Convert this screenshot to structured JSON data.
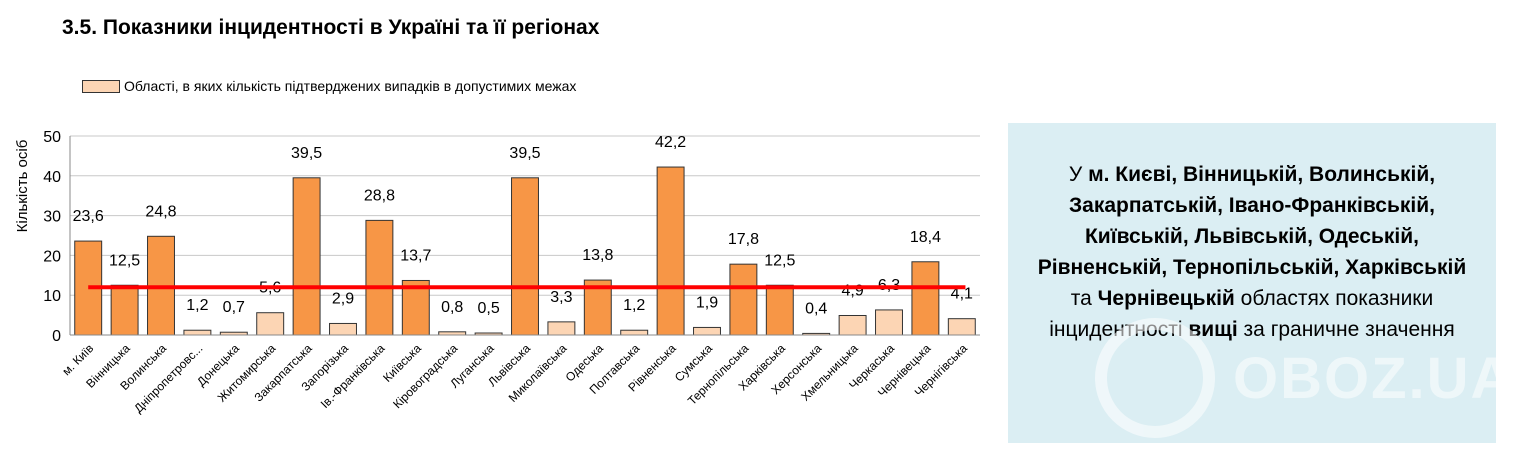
{
  "section_title": "3.5.  Показники інцидентності в Україні та її регіонах",
  "colors": {
    "high": "#f79646",
    "low": "#fcd5b4",
    "threshold": "#ff0000",
    "panel": "#dbeef3"
  },
  "chart_data": {
    "type": "bar",
    "ylabel": "Кількість осіб",
    "ylim": [
      0,
      50
    ],
    "yticks": [
      "0",
      "10",
      "20",
      "30",
      "40",
      "50"
    ],
    "threshold": 12,
    "legend": [
      "Області, в яких кількість підтверджених випадків в допустимих межах"
    ],
    "categories": [
      "м. Київ",
      "Вінницька",
      "Волинська",
      "Дніпропетровс...",
      "Донецька",
      "Житомирська",
      "Закарпатська",
      "Запорізька",
      "Ів.-Франківська",
      "Київська",
      "Кіровоградська",
      "Луганська",
      "Львівська",
      "Миколаївська",
      "Одеська",
      "Полтавська",
      "Рівненська",
      "Сумська",
      "Тернопільська",
      "Харківська",
      "Херсонська",
      "Хмельницька",
      "Черкаська",
      "Чернівецька",
      "Чернігівська"
    ],
    "values": [
      23.6,
      12.5,
      24.8,
      1.2,
      0.7,
      5.6,
      39.5,
      2.9,
      28.8,
      13.7,
      0.8,
      0.5,
      39.5,
      3.3,
      13.8,
      1.2,
      42.2,
      1.9,
      17.8,
      12.5,
      0.4,
      4.9,
      6.3,
      18.4,
      4.1
    ],
    "value_labels": [
      "23,6",
      "12,5",
      "24,8",
      "1,2",
      "0,7",
      "5,6",
      "39,5",
      "2,9",
      "28,8",
      "13,7",
      "0,8",
      "0,5",
      "39,5",
      "3,3",
      "13,8",
      "1,2",
      "42,2",
      "1,9",
      "17,8",
      "12,5",
      "0,4",
      "4,9",
      "6,3",
      "18,4",
      "4,1"
    ],
    "above_threshold": [
      true,
      true,
      true,
      false,
      false,
      false,
      true,
      false,
      true,
      true,
      false,
      false,
      true,
      false,
      true,
      false,
      true,
      false,
      true,
      true,
      false,
      false,
      false,
      true,
      false
    ]
  },
  "info_panel": {
    "p1": "У ",
    "p2": "м. Києві, Вінницькій, Волинській, Закарпатській, Івано-Франківській, Київській, Львівській, Одеській, Рівненській, Тернопільській, Харківській",
    "p3": " та ",
    "p4": "Чернівецькій",
    "p5": " областях показники інцидентності ",
    "p6": "вищі",
    "p7": " за граничне значення"
  },
  "watermark": "OBOZ.UA"
}
